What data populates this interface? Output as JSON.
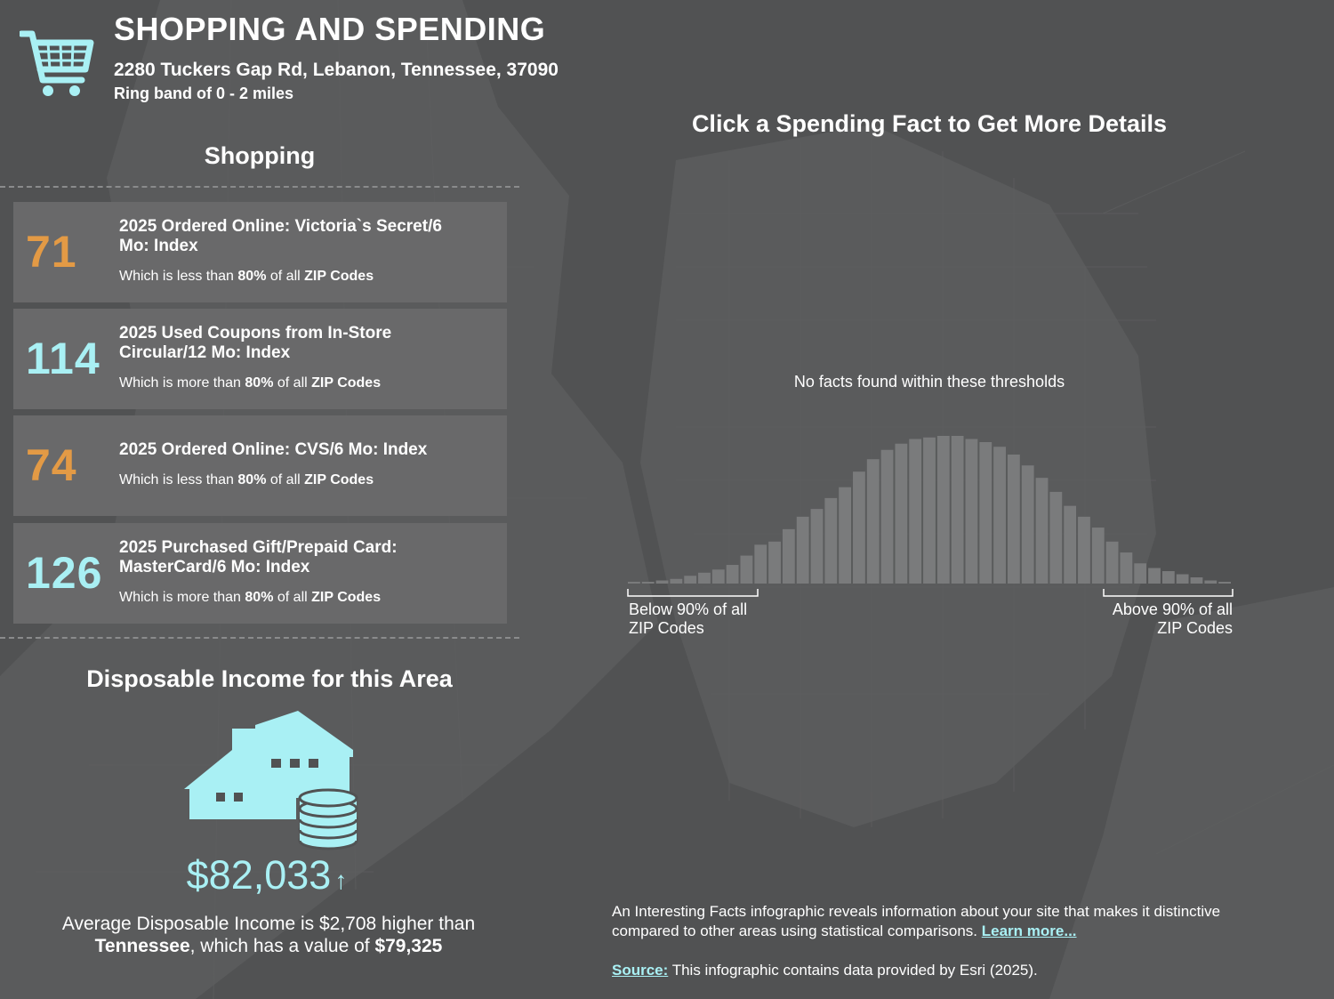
{
  "header": {
    "title": "SHOPPING AND SPENDING",
    "address": "2280 Tuckers Gap Rd, Lebanon, Tennessee, 37090",
    "ring_band": "Ring band of 0 - 2 miles",
    "icon": "shopping-cart-icon"
  },
  "shopping": {
    "heading": "Shopping",
    "facts": [
      {
        "value": "71",
        "title": "2025 Ordered Online: Victoria`s Secret/6 Mo: Index",
        "compare_prefix": "Which is",
        "compare_direction": "less than",
        "percent": "80%",
        "compare_mid": "of all",
        "compare_suffix": "ZIP Codes",
        "status": "low"
      },
      {
        "value": "114",
        "title": "2025 Used Coupons from In-Store Circular/12 Mo: Index",
        "compare_prefix": "Which is",
        "compare_direction": "more than",
        "percent": "80%",
        "compare_mid": "of all",
        "compare_suffix": "ZIP Codes",
        "status": "high"
      },
      {
        "value": "74",
        "title": "2025 Ordered Online: CVS/6 Mo: Index",
        "compare_prefix": "Which is",
        "compare_direction": "less than",
        "percent": "80%",
        "compare_mid": "of all",
        "compare_suffix": "ZIP Codes",
        "status": "low"
      },
      {
        "value": "126",
        "title": "2025 Purchased Gift/Prepaid Card: MasterCard/6 Mo: Index",
        "compare_prefix": "Which is",
        "compare_direction": "more than",
        "percent": "80%",
        "compare_mid": "of all",
        "compare_suffix": "ZIP Codes",
        "status": "high"
      }
    ]
  },
  "income": {
    "heading": "Disposable Income for this Area",
    "icon": "house-with-coins-icon",
    "value": "$82,033",
    "arrow": "↑",
    "compare_line1": "Average Disposable Income is $2,708 higher than",
    "state": "Tennessee",
    "compare_line2_mid": ", which has a value of",
    "state_value": "$79,325"
  },
  "spending_panel": {
    "heading": "Click a Spending Fact to Get More Details",
    "empty_message": "No facts found within these thresholds",
    "below_label_line1": "Below 90% of all",
    "below_label_line2": "ZIP Codes",
    "above_label_line1": "Above 90% of all",
    "above_label_line2": "ZIP Codes",
    "distribution": [
      1,
      1,
      2,
      3,
      5,
      7,
      9,
      12,
      18,
      25,
      27,
      35,
      43,
      48,
      55,
      62,
      72,
      80,
      86,
      90,
      93,
      94,
      95,
      95,
      93,
      91,
      88,
      83,
      76,
      68,
      59,
      50,
      43,
      36,
      27,
      20,
      13,
      10,
      8,
      6,
      4,
      2,
      1
    ]
  },
  "footer": {
    "info_text": "An Interesting Facts infographic reveals information about your site that makes it distinctive compared to other areas using statistical comparisons.",
    "learn_more": "Learn more...",
    "source_label": "Source:",
    "source_text": "This infographic contains data provided by Esri (2025)."
  },
  "colors": {
    "background": "#515253",
    "card": "#69696a",
    "accent_high": "#a9f0f4",
    "accent_low": "#e39a45",
    "bar": "#7a7b7c"
  }
}
